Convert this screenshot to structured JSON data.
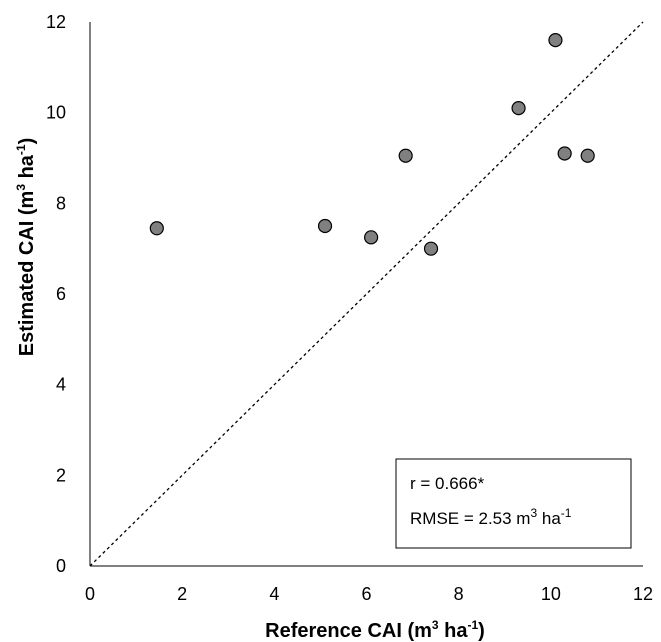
{
  "chart_data": {
    "type": "scatter",
    "xlabel": {
      "main": "Reference CAI (m",
      "sup1": "3",
      "mid": " ha",
      "sup2": "-1",
      "end": ")"
    },
    "ylabel": {
      "main": "Estimated CAI (m",
      "sup1": "3",
      "mid": " ha",
      "sup2": "-1",
      "end": ")"
    },
    "xlim": [
      0,
      12
    ],
    "ylim": [
      0,
      12
    ],
    "xticks": [
      0,
      2,
      4,
      6,
      8,
      10,
      12
    ],
    "yticks": [
      0,
      2,
      4,
      6,
      8,
      10,
      12
    ],
    "grid": false,
    "reference_line": "1:1 dashed",
    "points": [
      {
        "x": 1.45,
        "y": 7.45
      },
      {
        "x": 5.1,
        "y": 7.5
      },
      {
        "x": 6.1,
        "y": 7.25
      },
      {
        "x": 6.85,
        "y": 9.05
      },
      {
        "x": 7.4,
        "y": 7.0
      },
      {
        "x": 9.3,
        "y": 10.1
      },
      {
        "x": 10.1,
        "y": 11.6
      },
      {
        "x": 10.3,
        "y": 9.1
      },
      {
        "x": 10.8,
        "y": 9.05
      }
    ],
    "stats": {
      "r_line": "r = 0.666*",
      "rmse_main": "RMSE = 2.53 m",
      "rmse_sup1": "3",
      "rmse_mid": " ha",
      "rmse_sup2": "-1"
    },
    "colors": {
      "marker_fill": "#808080",
      "marker_stroke": "#000000",
      "line": "#000000"
    }
  }
}
